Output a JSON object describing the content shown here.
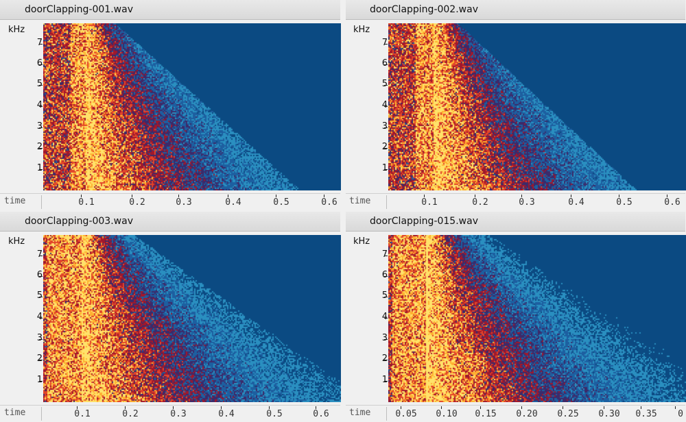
{
  "panels": [
    {
      "title": "doorClapping-001.wav",
      "y_unit": "kHz",
      "y_ticks": [
        "7",
        "6",
        "5",
        "4",
        "3",
        "2",
        "1"
      ],
      "x_label": "time",
      "x_ticks": [
        "0.1",
        "0.2",
        "0.3",
        "0.4",
        "0.5",
        "0.6"
      ],
      "x_range": [
        0,
        0.62
      ]
    },
    {
      "title": "doorClapping-002.wav",
      "y_unit": "kHz",
      "y_ticks": [
        "7",
        "6",
        "5",
        "4",
        "3",
        "2",
        "1"
      ],
      "x_label": "time",
      "x_ticks": [
        "0.1",
        "0.2",
        "0.3",
        "0.4",
        "0.5",
        "0.6"
      ],
      "x_range": [
        0,
        0.62
      ]
    },
    {
      "title": "doorClapping-003.wav",
      "y_unit": "kHz",
      "y_ticks": [
        "7",
        "6",
        "5",
        "4",
        "3",
        "2",
        "1"
      ],
      "x_label": "time",
      "x_ticks": [
        "0.1",
        "0.2",
        "0.3",
        "0.4",
        "0.5",
        "0.6"
      ],
      "x_range": [
        0,
        0.62
      ]
    },
    {
      "title": "doorClapping-015.wav",
      "y_unit": "kHz",
      "y_ticks": [
        "7",
        "6",
        "5",
        "4",
        "3",
        "2",
        "1"
      ],
      "x_label": "time",
      "x_ticks": [
        "0.05",
        "0.10",
        "0.15",
        "0.20",
        "0.25",
        "0.30",
        "0.35",
        "0"
      ],
      "x_range": [
        0,
        0.39
      ]
    }
  ],
  "colors": {
    "background": "#0b4a82",
    "low": "#2a8fc0",
    "mid": "#b0202a",
    "high": "#ffe060"
  }
}
